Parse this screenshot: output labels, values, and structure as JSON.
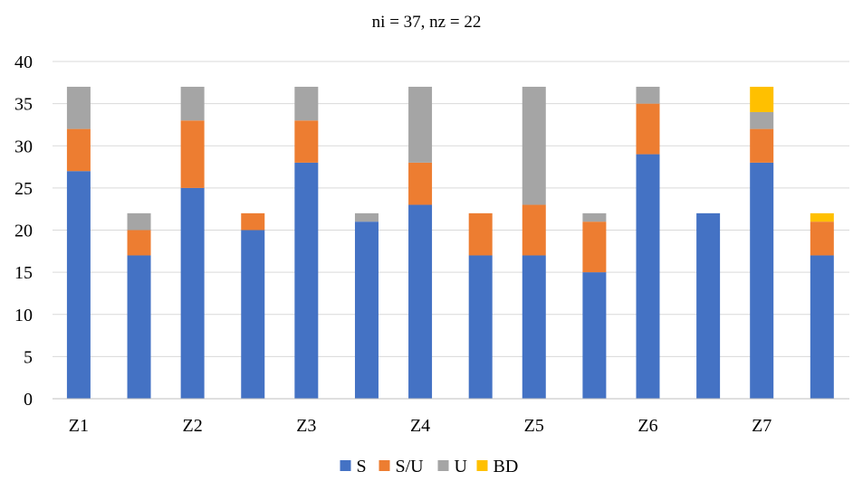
{
  "chart_data": {
    "type": "bar",
    "stacked": true,
    "title": "ni = 37, nz = 22",
    "xlabel": "",
    "ylabel": "",
    "ylim": [
      0,
      40
    ],
    "yticks": [
      0,
      5,
      10,
      15,
      20,
      25,
      30,
      35,
      40
    ],
    "grid": "horizontal",
    "legend_position": "bottom",
    "categories": [
      "Z1",
      "Z2",
      "Z3",
      "Z4",
      "Z5",
      "Z6",
      "Z7"
    ],
    "bars_per_category": [
      "ni",
      "nz"
    ],
    "series": [
      {
        "name": "S",
        "color": "#4472C4",
        "values": [
          [
            27,
            17
          ],
          [
            25,
            20
          ],
          [
            28,
            21
          ],
          [
            23,
            17
          ],
          [
            17,
            15
          ],
          [
            29,
            22
          ],
          [
            28,
            17
          ]
        ]
      },
      {
        "name": "S/U",
        "color": "#ED7D31",
        "values": [
          [
            5,
            3
          ],
          [
            8,
            2
          ],
          [
            5,
            0
          ],
          [
            5,
            5
          ],
          [
            6,
            6
          ],
          [
            6,
            0
          ],
          [
            4,
            4
          ]
        ]
      },
      {
        "name": "U",
        "color": "#A5A5A5",
        "values": [
          [
            5,
            2
          ],
          [
            4,
            0
          ],
          [
            4,
            1
          ],
          [
            9,
            0
          ],
          [
            14,
            1
          ],
          [
            2,
            0
          ],
          [
            2,
            0
          ]
        ]
      },
      {
        "name": "BD",
        "color": "#FFC000",
        "values": [
          [
            0,
            0
          ],
          [
            0,
            0
          ],
          [
            0,
            0
          ],
          [
            0,
            0
          ],
          [
            0,
            0
          ],
          [
            0,
            0
          ],
          [
            3,
            1
          ]
        ]
      }
    ]
  }
}
